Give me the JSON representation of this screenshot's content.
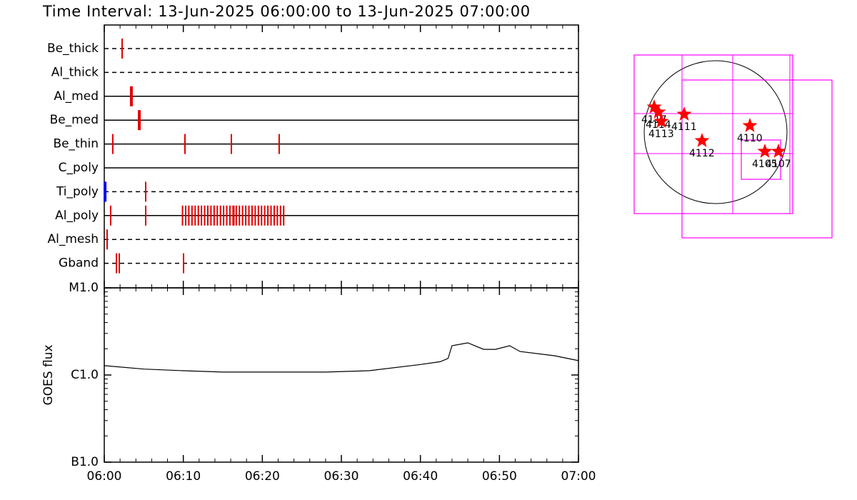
{
  "chart_data": [
    {
      "type": "timeline",
      "title": "Time Interval: 13-Jun-2025 06:00:00 to 13-Jun-2025 07:00:00",
      "event_color": "#e00000",
      "blue_color": "#0000ff",
      "rows": [
        {
          "name": "Be_thick",
          "line": "dashed",
          "events": [
            2.26
          ]
        },
        {
          "name": "Al_thick",
          "line": "dashed",
          "events": []
        },
        {
          "name": "Al_med",
          "line": "solid",
          "events": [
            3.34,
            3.52
          ]
        },
        {
          "name": "Be_med",
          "line": "solid",
          "events": [
            4.34,
            4.52
          ]
        },
        {
          "name": "Be_thin",
          "line": "solid",
          "events": [
            1.08,
            10.21,
            16.08,
            22.13
          ]
        },
        {
          "name": "C_poly",
          "line": "solid",
          "events": []
        },
        {
          "name": "Ti_poly",
          "line": "dashed",
          "events": [
            5.24
          ],
          "blue_events": [
            0.1
          ]
        },
        {
          "name": "Al_poly",
          "line": "solid",
          "events": [
            0.81,
            5.24,
            9.9,
            10.3,
            10.7,
            11.1,
            11.5,
            11.9,
            12.3,
            12.7,
            13.1,
            13.5,
            13.9,
            14.3,
            14.7,
            15.1,
            15.5,
            15.9,
            16.3,
            16.4,
            16.7,
            17.1,
            17.5,
            17.9,
            18.3,
            18.7,
            19.1,
            19.5,
            19.9,
            20.3,
            20.7,
            21.1,
            21.5,
            21.9,
            22.3,
            22.7
          ]
        },
        {
          "name": "Al_mesh",
          "line": "dashed",
          "events": [
            0.36
          ]
        },
        {
          "name": "Gband",
          "line": "dashed",
          "events": [
            1.54,
            1.9,
            10.03
          ]
        }
      ]
    },
    {
      "type": "line",
      "ylabel": "GOES flux",
      "color": "#000000",
      "log": true,
      "x": [
        0,
        5,
        10,
        15,
        20,
        28,
        33.5,
        40,
        42.5,
        43.5,
        44,
        46,
        48,
        49.5,
        51.3,
        52.6,
        57,
        60
      ],
      "values": [
        1.28e-06,
        1.17e-06,
        1.12e-06,
        1.08e-06,
        1.08e-06,
        1.08e-06,
        1.12e-06,
        1.32e-06,
        1.42e-06,
        1.55e-06,
        2.17e-06,
        2.34e-06,
        1.97e-06,
        1.97e-06,
        2.17e-06,
        1.86e-06,
        1.66e-06,
        1.46e-06
      ],
      "xlim": [
        0,
        60
      ],
      "xticks": [
        {
          "value": 0,
          "label": "06:00"
        },
        {
          "value": 10,
          "label": "06:10"
        },
        {
          "value": 20,
          "label": "06:20"
        },
        {
          "value": 30,
          "label": "06:30"
        },
        {
          "value": 40,
          "label": "06:40"
        },
        {
          "value": 50,
          "label": "06:50"
        },
        {
          "value": 60,
          "label": "07:00"
        }
      ],
      "xminor": [
        2,
        4,
        6,
        8,
        12,
        14,
        16,
        18,
        22,
        24,
        26,
        28,
        32,
        34,
        36,
        38,
        42,
        44,
        46,
        48,
        52,
        54,
        56,
        58
      ],
      "ylim": [
        1e-07,
        1e-05
      ],
      "yticks": [
        {
          "value": 1e-07,
          "label": "B1.0"
        },
        {
          "value": 1e-06,
          "label": "C1.0"
        },
        {
          "value": 1e-05,
          "label": "M1.0"
        }
      ],
      "yminor": [
        2e-07,
        3e-07,
        4e-07,
        5e-07,
        6e-07,
        7e-07,
        8e-07,
        9e-07,
        2e-06,
        3e-06,
        4e-06,
        5e-06,
        6e-06,
        7e-06,
        8e-06,
        9e-06
      ]
    }
  ],
  "map": {
    "box_color": "#ff00ff",
    "star_color": "#ff0000",
    "regions": [
      "4117",
      "4114",
      "4113",
      "4111",
      "4112",
      "4110",
      "4105",
      "4107"
    ]
  }
}
